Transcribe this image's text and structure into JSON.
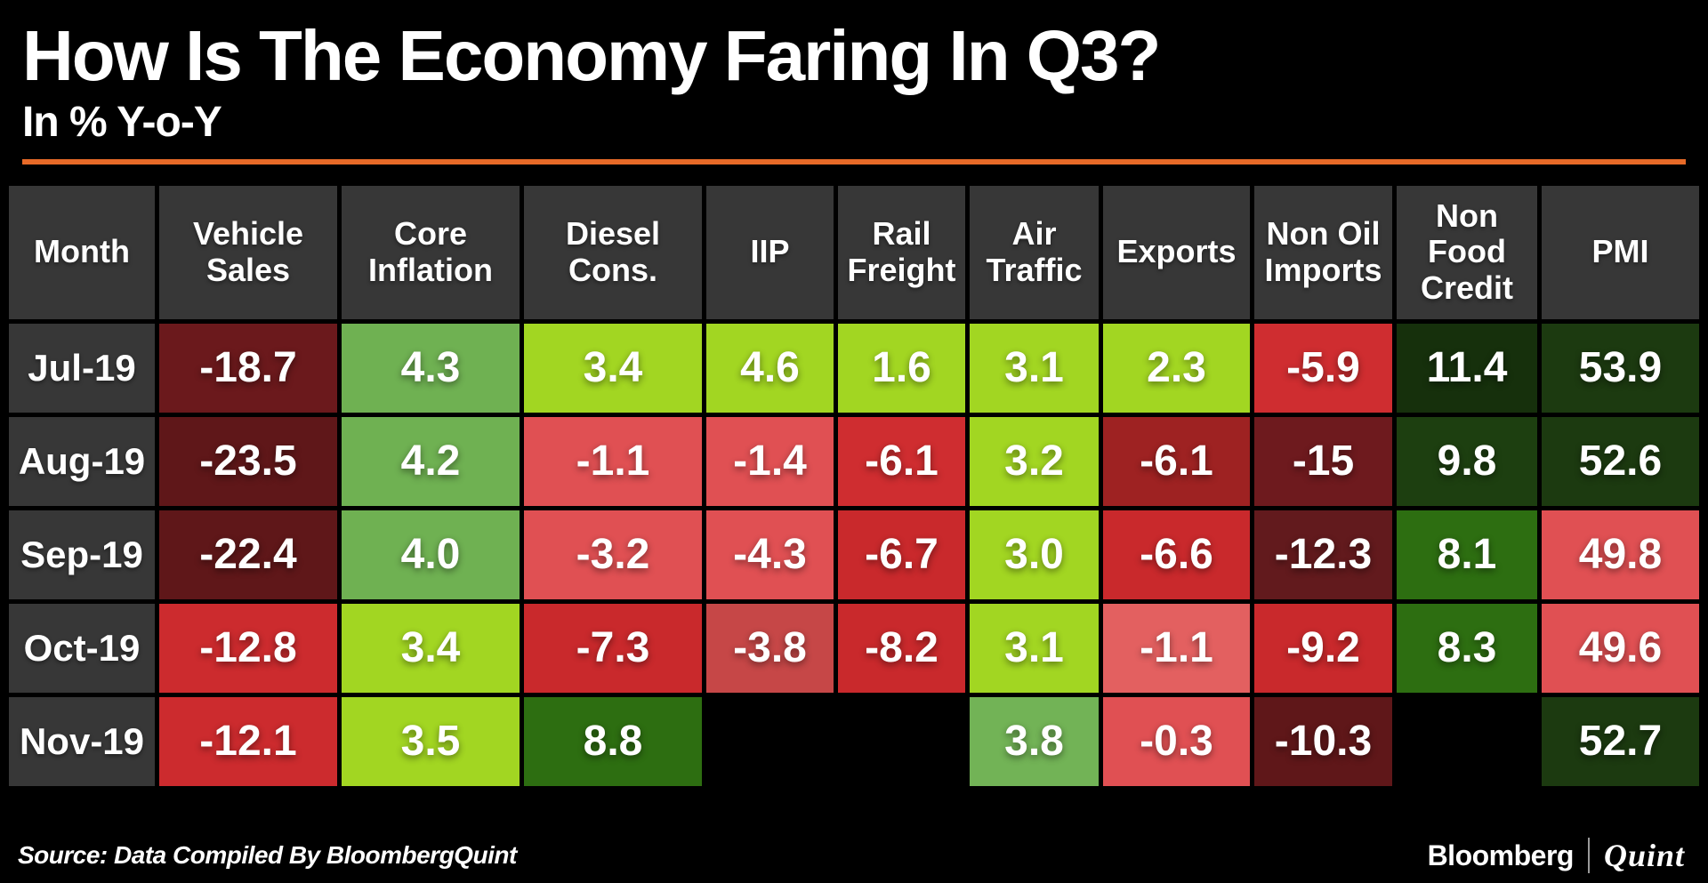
{
  "header": {
    "title": "How Is The Economy Faring In Q3?",
    "subtitle": "In % Y-o-Y",
    "accent_color": "#e76a28"
  },
  "footer": {
    "source": "Source: Data Compiled By BloombergQuint",
    "brand_bloomberg": "Bloomberg",
    "brand_quint": "Quint"
  },
  "chart_data": {
    "type": "heatmap",
    "title": "How Is The Economy Faring In Q3?",
    "subtitle_units": "In % Y-o-Y",
    "legend_position": "none",
    "grid_gap_color": "#000000",
    "header_bg": "#373737",
    "columns": [
      "Month",
      "Vehicle Sales",
      "Core Inflation",
      "Diesel Cons.",
      "IIP",
      "Rail Freight",
      "Air Traffic",
      "Exports",
      "Non Oil Imports",
      "Non Food Credit",
      "PMI"
    ],
    "rows": [
      "Jul-19",
      "Aug-19",
      "Sep-19",
      "Oct-19",
      "Nov-19"
    ],
    "values": [
      [
        -18.7,
        4.3,
        3.4,
        4.6,
        1.6,
        3.1,
        2.3,
        -5.9,
        11.4,
        53.9
      ],
      [
        -23.5,
        4.2,
        -1.1,
        -1.4,
        -6.1,
        3.2,
        -6.1,
        -15,
        9.8,
        52.6
      ],
      [
        -22.4,
        4.0,
        -3.2,
        -4.3,
        -6.7,
        3.0,
        -6.6,
        -12.3,
        8.1,
        49.8
      ],
      [
        -12.8,
        3.4,
        -7.3,
        -3.8,
        -8.2,
        3.1,
        -1.1,
        -9.2,
        8.3,
        49.6
      ],
      [
        -12.1,
        3.5,
        8.8,
        null,
        null,
        3.8,
        -0.3,
        -10.3,
        null,
        52.7
      ]
    ],
    "display": [
      [
        "-18.7",
        "4.3",
        "3.4",
        "4.6",
        "1.6",
        "3.1",
        "2.3",
        "-5.9",
        "11.4",
        "53.9"
      ],
      [
        "-23.5",
        "4.2",
        "-1.1",
        "-1.4",
        "-6.1",
        "3.2",
        "-6.1",
        "-15",
        "9.8",
        "52.6"
      ],
      [
        "-22.4",
        "4.0",
        "-3.2",
        "-4.3",
        "-6.7",
        "3.0",
        "-6.6",
        "-12.3",
        "8.1",
        "49.8"
      ],
      [
        "-12.8",
        "3.4",
        "-7.3",
        "-3.8",
        "-8.2",
        "3.1",
        "-1.1",
        "-9.2",
        "8.3",
        "49.6"
      ],
      [
        "-12.1",
        "3.5",
        "8.8",
        "",
        "",
        "3.8",
        "-0.3",
        "-10.3",
        "",
        "52.7"
      ]
    ],
    "cell_colors": [
      [
        "#6b191c",
        "#6fb152",
        "#a2d622",
        "#a2d622",
        "#a2d622",
        "#a2d622",
        "#a2d622",
        "#cf2d30",
        "#16300c",
        "#1c3a10"
      ],
      [
        "#5f1719",
        "#6fb152",
        "#e05053",
        "#e05053",
        "#cf2d30",
        "#a2d622",
        "#9e2222",
        "#6e1a1e",
        "#1d3f10",
        "#1c3a10"
      ],
      [
        "#5f1719",
        "#6fb152",
        "#e05053",
        "#e05053",
        "#c9292c",
        "#a2d622",
        "#c9292c",
        "#621a1d",
        "#2d6e11",
        "#e05053"
      ],
      [
        "#cc2b2e",
        "#a2d622",
        "#c9292c",
        "#c64747",
        "#c9292c",
        "#a2d622",
        "#e36060",
        "#c9292c",
        "#2d6e11",
        "#e05053"
      ],
      [
        "#cc2b2e",
        "#a2d622",
        "#2d6e11",
        "",
        "",
        "#72b356",
        "#e05053",
        "#5f1719",
        "",
        "#1c3a10"
      ]
    ]
  }
}
